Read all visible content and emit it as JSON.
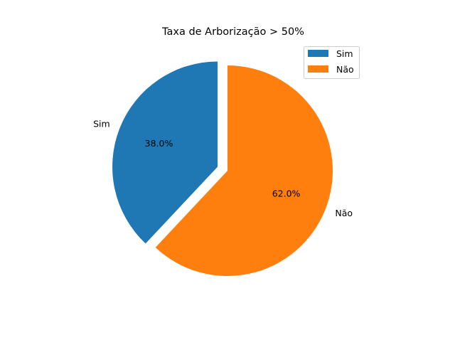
{
  "chart_data": {
    "type": "pie",
    "title": "Taxa de Arborização > 50%",
    "labels": [
      "Sim",
      "Não"
    ],
    "values": [
      38.0,
      62.0
    ],
    "percent_labels": [
      "38.0%",
      "62.0%"
    ],
    "colors": [
      "#1f77b4",
      "#ff7f0e"
    ],
    "exploded": [
      true,
      false
    ],
    "start_angle_deg": 90,
    "direction": "counterclockwise",
    "legend": {
      "placement": "top-right",
      "entries": [
        "Sim",
        "Não"
      ]
    }
  }
}
